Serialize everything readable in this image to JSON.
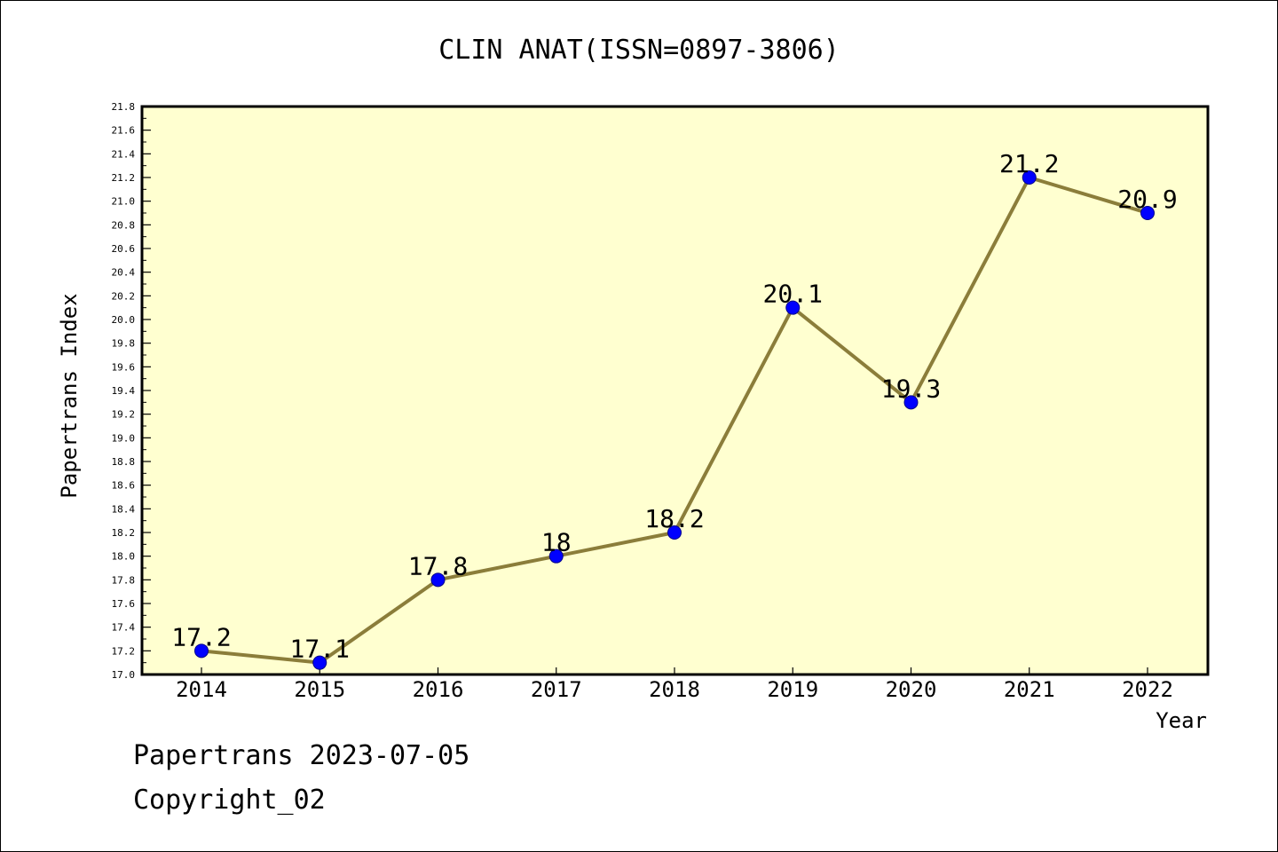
{
  "chart_data": {
    "type": "line",
    "title": "CLIN ANAT(ISSN=0897-3806)",
    "xlabel": "Year",
    "ylabel": "Papertrans Index",
    "categories": [
      "2014",
      "2015",
      "2016",
      "2017",
      "2018",
      "2019",
      "2020",
      "2021",
      "2022"
    ],
    "series": [
      {
        "values": [
          17.2,
          17.1,
          17.8,
          18.0,
          18.2,
          20.1,
          19.3,
          21.2,
          20.9
        ],
        "labels": [
          "17.2",
          "17.1",
          "17.8",
          "18",
          "18.2",
          "20.1",
          "19.3",
          "21.2",
          "20.9"
        ]
      }
    ],
    "ylim": [
      17.0,
      21.8
    ],
    "ytick_step": 0.2,
    "ytick_labels": [
      "17.0",
      "17.2",
      "17.4",
      "17.6",
      "17.8",
      "18.0",
      "18.2",
      "18.4",
      "18.6",
      "18.8",
      "19.0",
      "19.2",
      "19.4",
      "19.6",
      "19.8",
      "20.0",
      "20.2",
      "20.4",
      "20.6",
      "20.8",
      "21.0",
      "21.2",
      "21.4",
      "21.6",
      "21.8"
    ],
    "grid": false,
    "legend": "none",
    "colors": {
      "plot_background": "#ffffd0",
      "line": "#8b7d3a",
      "marker": "#0000ff",
      "marker_edge": "#00008b"
    }
  },
  "footer": {
    "date_text": "Papertrans 2023-07-05",
    "copyright_text": "Copyright_02"
  }
}
